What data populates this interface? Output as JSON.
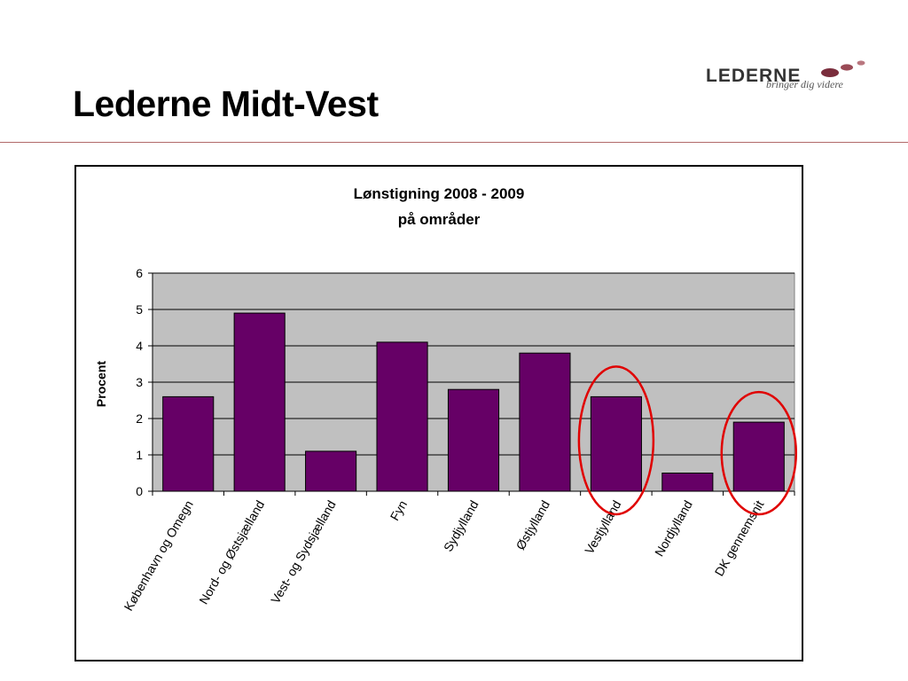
{
  "slide": {
    "title": "Lederne Midt-Vest"
  },
  "logo": {
    "wordmark": "LEDERNE",
    "tagline": "bringer dig videre",
    "colors": {
      "text": "#333333",
      "tagline": "#555555",
      "dot_dark": "#7a2d3c",
      "dot_mid": "#9a4a56",
      "dot_light": "#b9777f"
    }
  },
  "colors": {
    "rule": "#b26a6a",
    "bar_fill": "#660066",
    "plot_bg": "#c0c0c0",
    "highlight_circle": "#e00000"
  },
  "chart_data": {
    "type": "bar",
    "title_lines": [
      "Lønstigning 2008 - 2009",
      "på områder"
    ],
    "xlabel": "",
    "ylabel": "Procent",
    "ylim": [
      0,
      6
    ],
    "yticks": [
      0,
      1,
      2,
      3,
      4,
      5,
      6
    ],
    "grid": true,
    "legend": "none",
    "categories": [
      "København og Omegn",
      "Nord- og Østsjælland",
      "Vest- og Sydsjælland",
      "Fyn",
      "Sydjylland",
      "Østjylland",
      "Vestjylland",
      "Nordjylland",
      "DK gennemsnit"
    ],
    "values": [
      2.6,
      4.9,
      1.1,
      4.1,
      2.8,
      3.8,
      2.6,
      0.5,
      1.9
    ],
    "highlighted_categories": [
      "Vestjylland",
      "DK gennemsnit"
    ]
  }
}
